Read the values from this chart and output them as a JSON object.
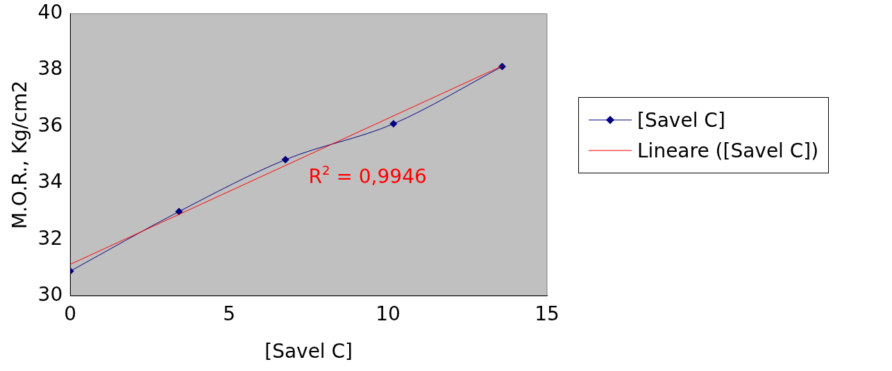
{
  "chart_data": {
    "type": "line",
    "xlabel": "[Savel C]",
    "ylabel": "M.O.R., Kg/cm2",
    "xlim": [
      0,
      15
    ],
    "xticks": [
      0,
      5,
      10,
      15
    ],
    "ylim": [
      30,
      40
    ],
    "yticks": [
      30,
      32,
      34,
      36,
      38,
      40
    ],
    "grid": false,
    "legend": "right",
    "marker": "diamond",
    "line_style": "solid",
    "annotations": [
      "R$^{2}$ = 0,9946"
    ],
    "series": [
      {
        "name": "[Savel C]",
        "color": "#000080",
        "x": [
          0,
          3.42,
          6.77,
          10.17,
          13.59
        ],
        "values": [
          30.88,
          32.99,
          34.83,
          36.1,
          38.13
        ]
      },
      {
        "name": "Lineare ([Savel C])",
        "type": "line",
        "marker": "none",
        "color": "#ff0000",
        "x": [
          0,
          13.59
        ],
        "values": [
          31.12,
          38.15
        ]
      }
    ]
  }
}
